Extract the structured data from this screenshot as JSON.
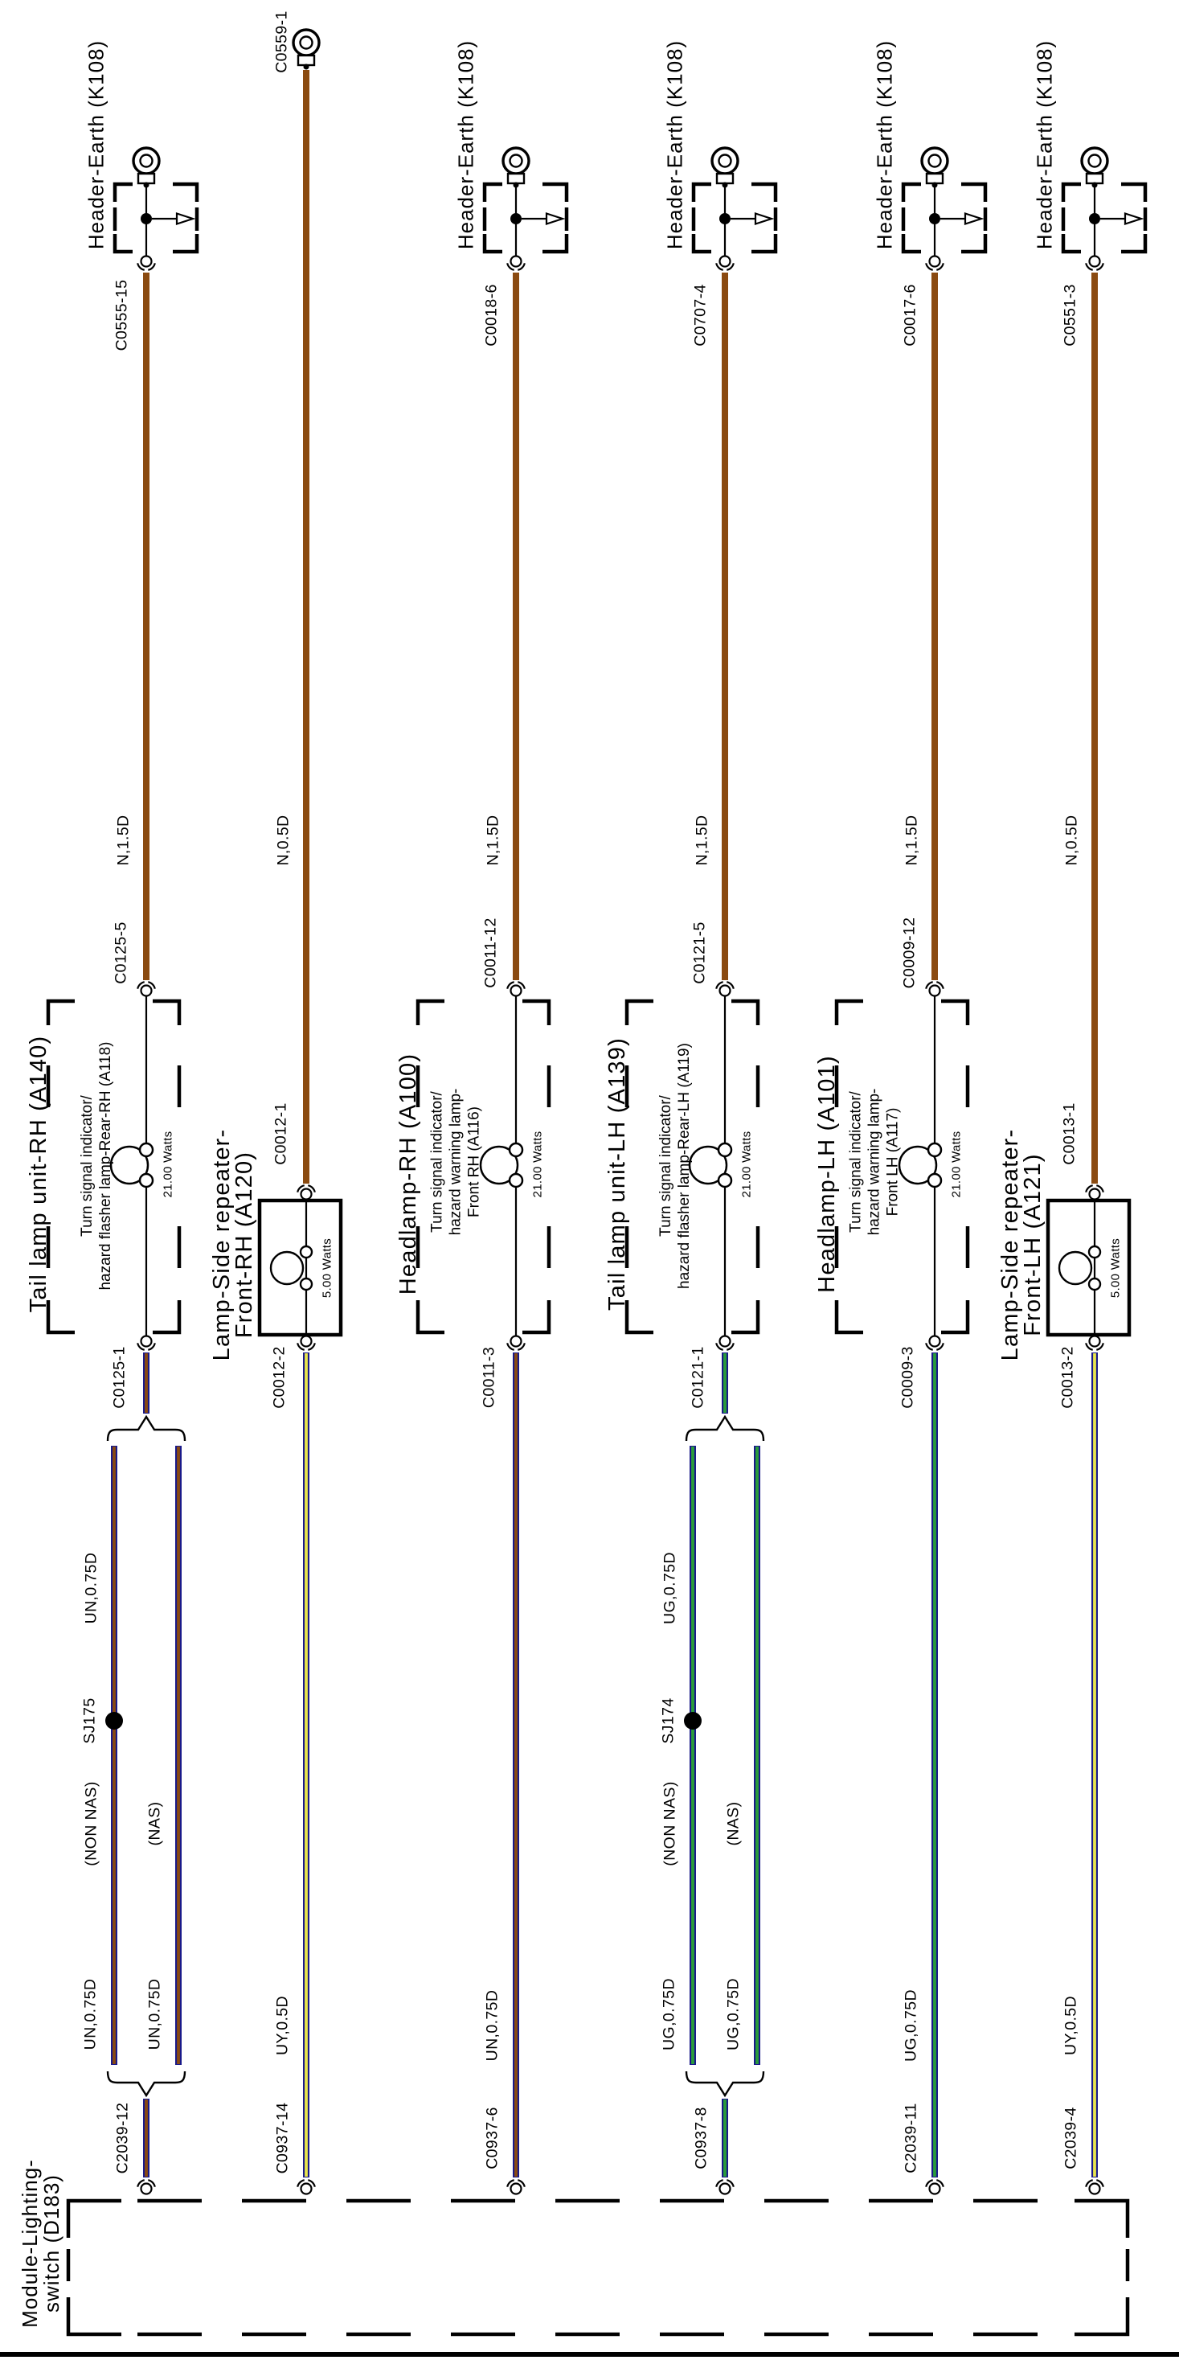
{
  "page": {
    "background": "#ffffff",
    "line_color": "#000000"
  },
  "colors": {
    "brown": "#8a4a10",
    "navy": "#191989",
    "green": "#2a9d3a",
    "yellow": "#e8e44c"
  },
  "module": {
    "title_lines": [
      "Module-Lighting-",
      "switch (D183)"
    ]
  },
  "columns": [
    {
      "name": "tail-lamp-unit-rh",
      "top": {
        "kind": "earth",
        "title": "Header-Earth (K108)",
        "connector": "C0555-15"
      },
      "feed": {
        "label": "N,1.5D",
        "color": "brown"
      },
      "component": {
        "kind": "dashed",
        "title_lines": [
          "Tail lamp unit-RH (A140)"
        ],
        "sub_lines": [
          "Turn signal indicator/",
          "hazard flasher lamp-Rear-RH (A118)"
        ],
        "watts": "21.00 Watts",
        "top_connector": "C0125-5",
        "bottom_connector": "C0125-1"
      },
      "out": {
        "core": "brown",
        "upper_label": "UN,0.75D",
        "splice": "SJ175",
        "left_tag": "(NON NAS)",
        "right_tag": "(NAS)",
        "lower_left_label": "UN,0.75D",
        "lower_right_label": "UN,0.75D"
      },
      "module_connector": "C2039-12"
    },
    {
      "name": "lamp-side-repeater-front-rh",
      "top": {
        "kind": "ring",
        "connector": "C0559-1"
      },
      "feed": {
        "label": "N,0.5D",
        "color": "brown"
      },
      "component": {
        "kind": "solid",
        "title_lines": [
          "Lamp-Side repeater-",
          "Front-RH (A120)"
        ],
        "watts": "5.00 Watts",
        "top_connector": "C0012-1",
        "bottom_connector": "C0012-2"
      },
      "out": {
        "core": "yellow",
        "label": "UY,0.5D"
      },
      "module_connector": "C0937-14"
    },
    {
      "name": "headlamp-rh",
      "top": {
        "kind": "earth",
        "title": "Header-Earth (K108)",
        "connector": "C0018-6"
      },
      "feed": {
        "label": "N,1.5D",
        "color": "brown"
      },
      "component": {
        "kind": "dashed",
        "title_lines": [
          "Headlamp-RH (A100)"
        ],
        "sub_lines": [
          "Turn signal indicator/",
          "hazard warning lamp-",
          "Front RH (A116)"
        ],
        "watts": "21.00 Watts",
        "top_connector": "C0011-12",
        "bottom_connector": "C0011-3"
      },
      "out": {
        "core": "brown",
        "label": "UN,0.75D"
      },
      "module_connector": "C0937-6"
    },
    {
      "name": "tail-lamp-unit-lh",
      "top": {
        "kind": "earth",
        "title": "Header-Earth (K108)",
        "connector": "C0707-4"
      },
      "feed": {
        "label": "N,1.5D",
        "color": "brown"
      },
      "component": {
        "kind": "dashed",
        "title_lines": [
          "Tail lamp unit-LH (A139)"
        ],
        "sub_lines": [
          "Turn signal indicator/",
          "hazard flasher lamp-Rear-LH (A119)"
        ],
        "watts": "21.00 Watts",
        "top_connector": "C0121-5",
        "bottom_connector": "C0121-1"
      },
      "out": {
        "core": "green",
        "upper_label": "UG,0.75D",
        "splice": "SJ174",
        "left_tag": "(NON NAS)",
        "right_tag": "(NAS)",
        "lower_left_label": "UG,0.75D",
        "lower_right_label": "UG,0.75D"
      },
      "module_connector": "C0937-8"
    },
    {
      "name": "headlamp-lh",
      "top": {
        "kind": "earth",
        "title": "Header-Earth (K108)",
        "connector": "C0017-6"
      },
      "feed": {
        "label": "N,1.5D",
        "color": "brown"
      },
      "component": {
        "kind": "dashed",
        "title_lines": [
          "Headlamp-LH (A101)"
        ],
        "sub_lines": [
          "Turn signal indicator/",
          "hazard warning lamp-",
          "Front LH (A117)"
        ],
        "watts": "21.00 Watts",
        "top_connector": "C0009-12",
        "bottom_connector": "C0009-3"
      },
      "out": {
        "core": "green",
        "label": "UG,0.75D"
      },
      "module_connector": "C2039-11"
    },
    {
      "name": "lamp-side-repeater-front-lh",
      "top": {
        "kind": "earth",
        "title": "Header-Earth (K108)",
        "connector": "C0551-3"
      },
      "feed": {
        "label": "N,0.5D",
        "color": "brown"
      },
      "component": {
        "kind": "solid",
        "title_lines": [
          "Lamp-Side repeater-",
          "Front-LH (A121)"
        ],
        "watts": "5.00 Watts",
        "top_connector": "C0013-1",
        "bottom_connector": "C0013-2"
      },
      "out": {
        "core": "yellow",
        "label": "UY,0.5D"
      },
      "module_connector": "C2039-4"
    }
  ]
}
